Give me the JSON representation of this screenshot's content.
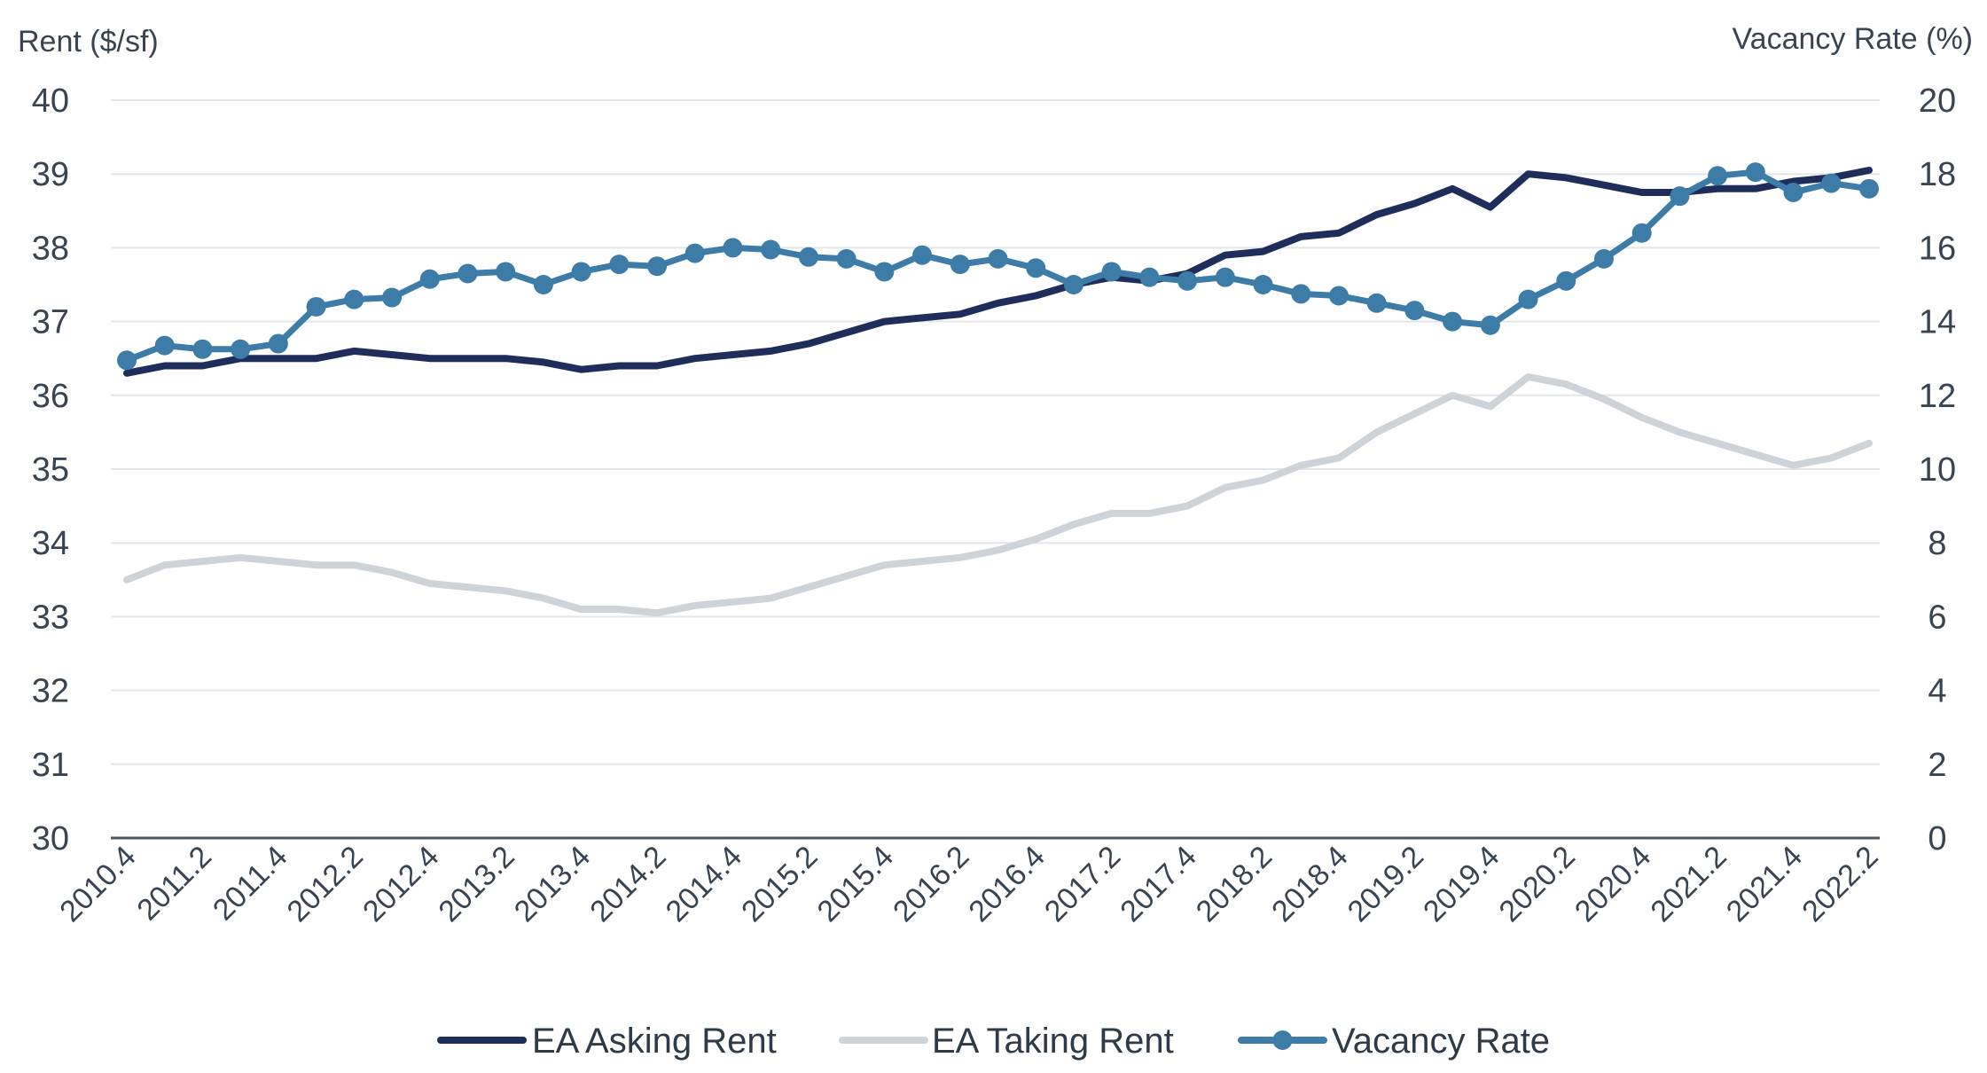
{
  "chart_data": {
    "type": "line",
    "title": "",
    "ylabel_left": "Rent ($/sf)",
    "ylabel_right": "Vacancy Rate (%)",
    "ylim_left": [
      30,
      40
    ],
    "ylim_right": [
      0,
      20
    ],
    "yticks_left": [
      "30",
      "31",
      "32",
      "33",
      "34",
      "35",
      "36",
      "37",
      "38",
      "39",
      "40"
    ],
    "yticks_right": [
      "0",
      "2",
      "4",
      "6",
      "8",
      "10",
      "12",
      "14",
      "16",
      "18",
      "20"
    ],
    "grid": true,
    "legend_position": "bottom",
    "x": [
      "2010.4",
      "2011.1",
      "2011.2",
      "2011.3",
      "2011.4",
      "2012.1",
      "2012.2",
      "2012.3",
      "2012.4",
      "2013.1",
      "2013.2",
      "2013.3",
      "2013.4",
      "2014.1",
      "2014.2",
      "2014.3",
      "2014.4",
      "2015.1",
      "2015.2",
      "2015.3",
      "2015.4",
      "2016.1",
      "2016.2",
      "2016.3",
      "2016.4",
      "2017.1",
      "2017.2",
      "2017.3",
      "2017.4",
      "2018.1",
      "2018.2",
      "2018.3",
      "2018.4",
      "2019.1",
      "2019.2",
      "2019.3",
      "2019.4",
      "2020.1",
      "2020.2",
      "2020.3",
      "2020.4",
      "2021.1",
      "2021.2",
      "2021.3",
      "2021.4",
      "2022.1",
      "2022.2"
    ],
    "xtick_labels": [
      "2010.4",
      "2011.2",
      "2011.4",
      "2012.2",
      "2012.4",
      "2013.2",
      "2013.4",
      "2014.2",
      "2014.4",
      "2015.2",
      "2015.4",
      "2016.2",
      "2016.4",
      "2017.2",
      "2017.4",
      "2018.2",
      "2018.4",
      "2019.2",
      "2019.4",
      "2020.2",
      "2020.4",
      "2021.2",
      "2021.4",
      "2022.2"
    ],
    "series": [
      {
        "name": "EA Asking Rent",
        "axis": "left",
        "color": "#1f2d5a",
        "marker": false,
        "values": [
          36.3,
          36.4,
          36.4,
          36.5,
          36.5,
          36.5,
          36.6,
          36.55,
          36.5,
          36.5,
          36.5,
          36.45,
          36.35,
          36.4,
          36.4,
          36.5,
          36.55,
          36.6,
          36.7,
          36.85,
          37.0,
          37.05,
          37.1,
          37.25,
          37.35,
          37.5,
          37.6,
          37.55,
          37.65,
          37.9,
          37.95,
          38.15,
          38.2,
          38.45,
          38.6,
          38.8,
          38.55,
          39.0,
          38.95,
          38.85,
          38.75,
          38.75,
          38.8,
          38.8,
          38.9,
          38.95,
          39.05
        ]
      },
      {
        "name": "EA Taking Rent",
        "axis": "left",
        "color": "#cdd3d8",
        "marker": false,
        "values": [
          33.5,
          33.7,
          33.75,
          33.8,
          33.75,
          33.7,
          33.7,
          33.6,
          33.45,
          33.4,
          33.35,
          33.25,
          33.1,
          33.1,
          33.05,
          33.15,
          33.2,
          33.25,
          33.4,
          33.55,
          33.7,
          33.75,
          33.8,
          33.9,
          34.05,
          34.25,
          34.4,
          34.4,
          34.5,
          34.75,
          34.85,
          35.05,
          35.15,
          35.5,
          35.75,
          36.0,
          35.85,
          36.25,
          36.15,
          35.95,
          35.7,
          35.5,
          35.35,
          35.2,
          35.05,
          35.15,
          35.35
        ]
      },
      {
        "name": "Vacancy Rate",
        "axis": "right",
        "color": "#3d7ca6",
        "marker": true,
        "values": [
          12.95,
          13.35,
          13.25,
          13.25,
          13.4,
          14.4,
          14.6,
          14.65,
          15.15,
          15.3,
          15.35,
          15.0,
          15.35,
          15.55,
          15.5,
          15.85,
          16.0,
          15.95,
          15.75,
          15.7,
          15.35,
          15.8,
          15.55,
          15.7,
          15.45,
          15.0,
          15.35,
          15.2,
          15.1,
          15.2,
          15.0,
          14.75,
          14.7,
          14.5,
          14.3,
          14.0,
          13.9,
          14.6,
          15.1,
          15.7,
          16.4,
          17.4,
          17.95,
          18.05,
          17.5,
          17.75,
          17.6
        ]
      }
    ]
  }
}
